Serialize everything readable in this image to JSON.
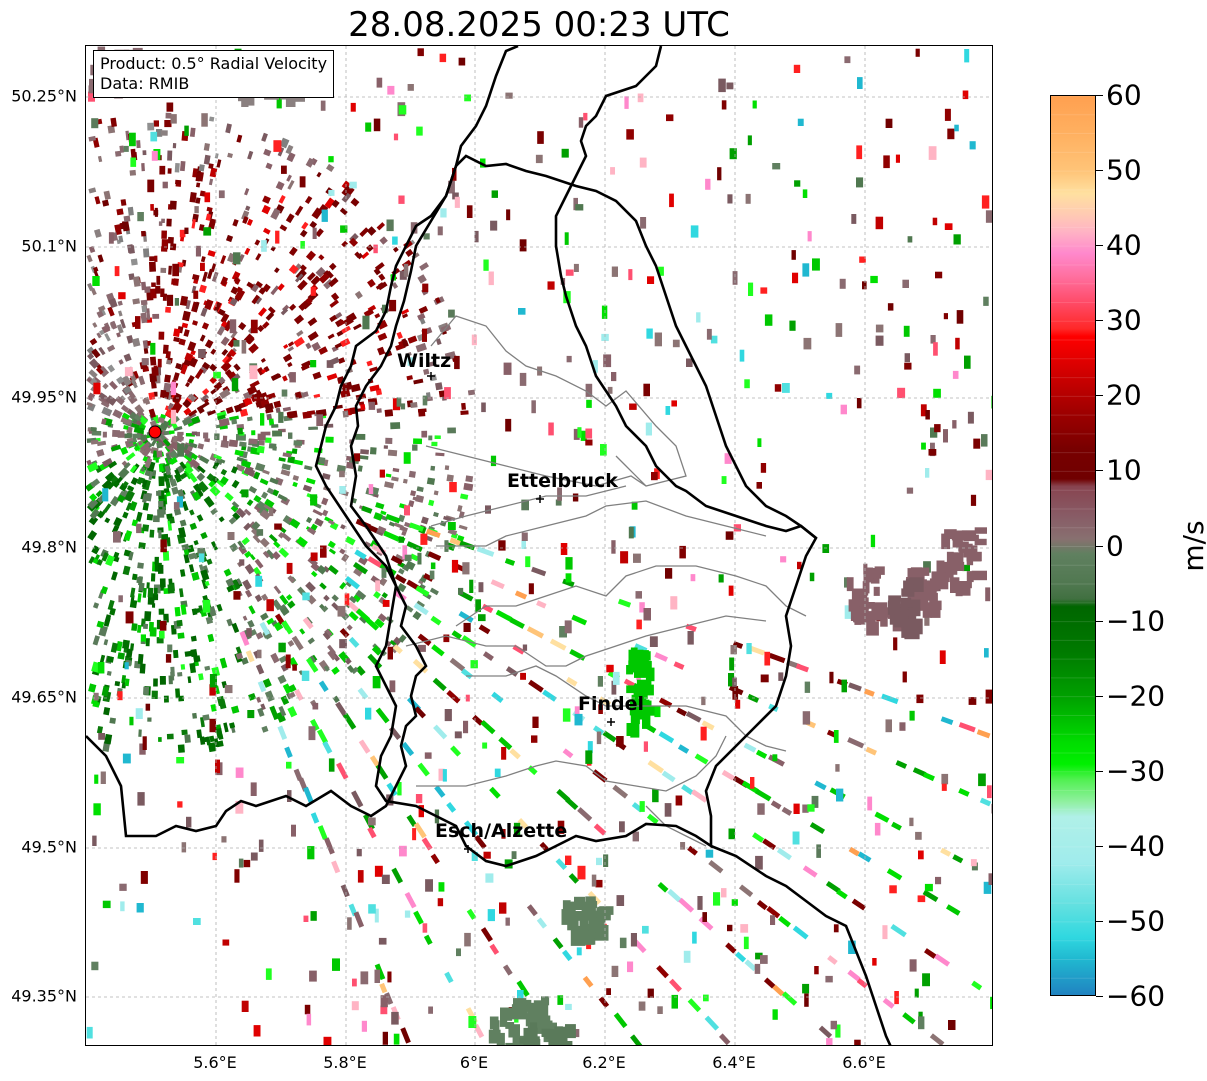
{
  "title": "28.08.2025 00:23 UTC",
  "info": {
    "product": "Product: 0.5° Radial Velocity",
    "source": "Data: RMIB"
  },
  "lat_ticks": [
    "50.25°N",
    "50.1°N",
    "49.95°N",
    "49.8°N",
    "49.65°N",
    "49.5°N",
    "49.35°N"
  ],
  "lon_ticks": [
    "5.6°E",
    "5.8°E",
    "6°E",
    "6.2°E",
    "6.4°E",
    "6.6°E"
  ],
  "cities": [
    {
      "name": "Wiltz"
    },
    {
      "name": "Ettelbruck"
    },
    {
      "name": "Findel"
    },
    {
      "name": "Esch/Alzette"
    }
  ],
  "colorbar": {
    "label": "m/s",
    "min": -60,
    "max": 60,
    "tick_labels": [
      "60",
      "50",
      "40",
      "30",
      "20",
      "10",
      "0",
      "−10",
      "−20",
      "−30",
      "−40",
      "−50",
      "−60"
    ]
  },
  "colors": {
    "border_country": "#000000",
    "border_canton": "#808080",
    "radar_site": "#ff0000"
  }
}
